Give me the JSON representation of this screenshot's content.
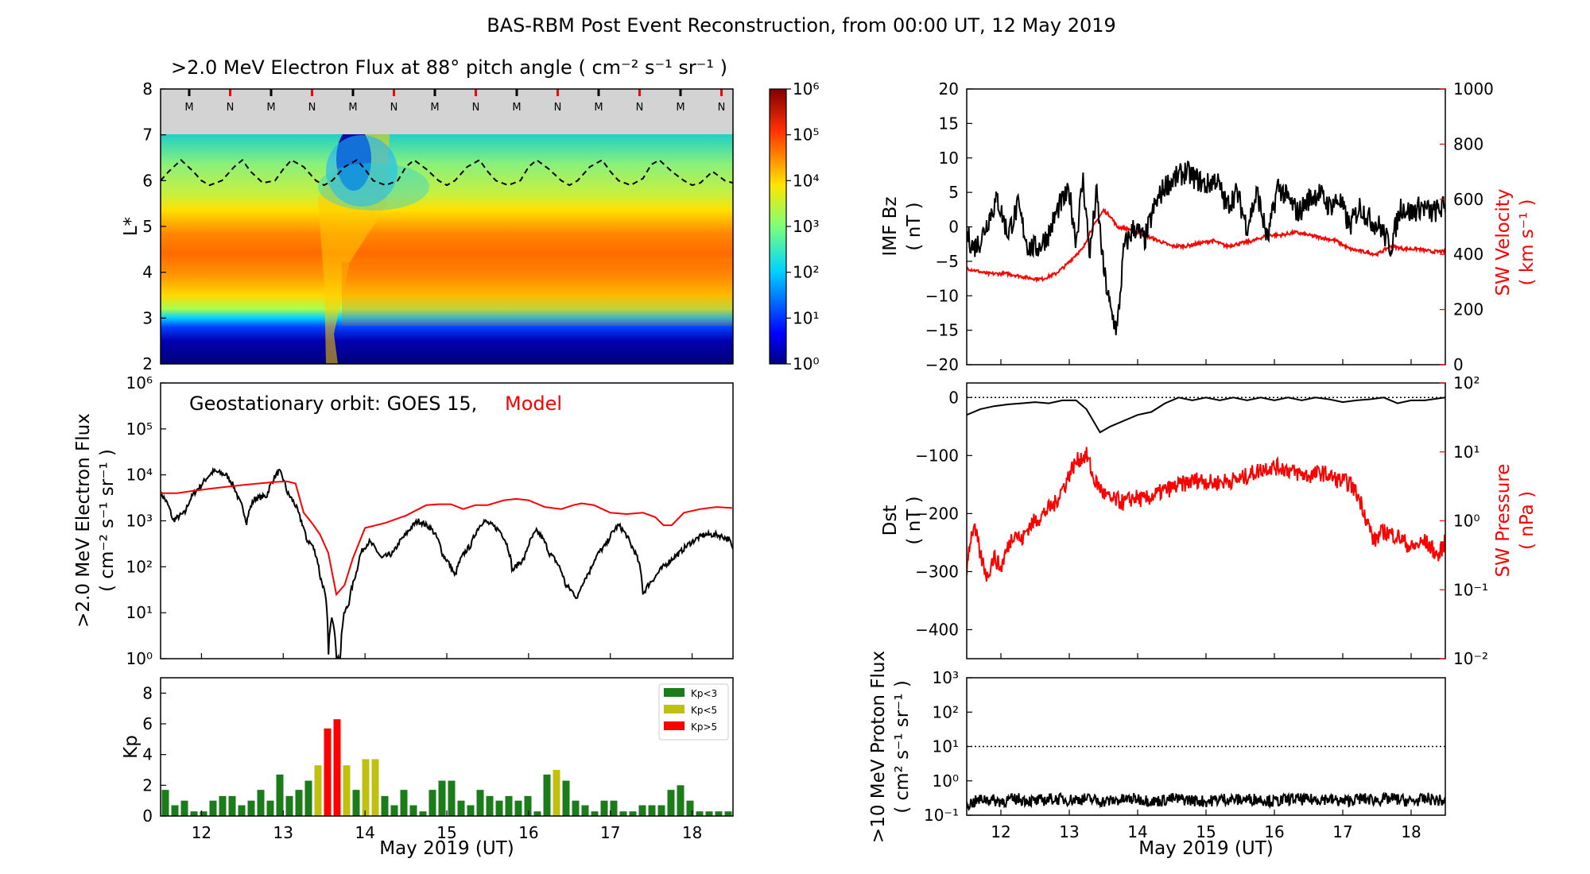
{
  "figure": {
    "title": "BAS-RBM Post Event Reconstruction, from 00:00 UT, 12 May 2019",
    "colors": {
      "model": "#ff0000",
      "obs": "#000000",
      "kp_low": "#1a7d1a",
      "kp_mid": "#c0c010",
      "kp_high": "#ff0000",
      "night_tick": "#ff0000",
      "day_tick": "#000000",
      "band": "#d3d3d3"
    }
  },
  "chart_data": [
    {
      "id": "flux_map",
      "type": "heatmap",
      "title": ">2.0 MeV Electron Flux at 88° pitch angle ( cm⁻² s⁻¹ sr⁻¹ )",
      "ylabel": "L*",
      "ylim": [
        2,
        8
      ],
      "yticks": [
        "2",
        "3",
        "4",
        "5",
        "6",
        "7",
        "8"
      ],
      "colorbar": {
        "scale": "log",
        "range": [
          1,
          1000000
        ],
        "tick_labels": [
          "10⁰",
          "10¹",
          "10²",
          "10³",
          "10⁴",
          "10⁵",
          "10⁶"
        ]
      },
      "mlt_markers": [
        "M",
        "N",
        "M",
        "N",
        "M",
        "N",
        "M",
        "N",
        "M",
        "N",
        "M",
        "N",
        "M",
        "N"
      ],
      "gso_lstar": {
        "t": [
          0,
          0.1,
          0.25,
          0.4,
          0.5,
          0.6,
          0.75,
          0.9,
          1.0,
          1.1,
          1.25,
          1.4,
          1.5,
          1.6,
          1.75,
          1.9,
          2.0,
          2.1,
          2.25,
          2.4,
          2.5,
          2.6,
          2.75,
          2.9,
          3.0,
          3.1,
          3.25,
          3.4,
          3.5,
          3.6,
          3.75,
          3.9,
          4.0,
          4.1,
          4.25,
          4.4,
          4.5,
          4.6,
          4.75,
          4.9,
          5.0,
          5.1,
          5.25,
          5.4,
          5.5,
          5.6,
          5.75,
          5.9,
          6.0,
          6.1,
          6.25,
          6.4,
          6.5,
          6.6,
          6.75,
          6.9,
          7.0
        ],
        "lstar": [
          6.0,
          6.2,
          6.45,
          6.2,
          6.0,
          5.9,
          6.0,
          6.3,
          6.45,
          6.2,
          5.95,
          6.0,
          6.25,
          6.45,
          6.3,
          6.0,
          5.9,
          6.0,
          6.3,
          6.45,
          6.25,
          6.0,
          5.9,
          6.0,
          6.3,
          6.45,
          6.25,
          6.0,
          5.9,
          6.0,
          6.3,
          6.45,
          6.2,
          6.0,
          5.9,
          6.0,
          6.3,
          6.45,
          6.25,
          6.0,
          5.9,
          6.0,
          6.3,
          6.45,
          6.2,
          6.0,
          5.9,
          6.05,
          6.35,
          6.45,
          6.2,
          6.0,
          5.9,
          5.95,
          6.2,
          6.0,
          5.95
        ]
      }
    },
    {
      "id": "goes_flux",
      "type": "line",
      "annotation": "Geostationary orbit:   GOES 15,",
      "annotation_model": "Model",
      "ylabel_line1": ">2.0 MeV Electron Flux",
      "ylabel_line2": "( cm⁻² s⁻¹ sr⁻¹ )",
      "yscale": "log",
      "ylim": [
        1,
        1000000
      ],
      "yticks": [
        "10⁰",
        "10¹",
        "10²",
        "10³",
        "10⁴",
        "10⁵",
        "10⁶"
      ],
      "series": [
        {
          "name": "GOES 15",
          "t": [
            0,
            0.15,
            0.3,
            0.5,
            0.65,
            0.8,
            0.95,
            1.05,
            1.15,
            1.3,
            1.45,
            1.55,
            1.7,
            1.78,
            1.85,
            1.95,
            2.05,
            2.1,
            2.15,
            2.2,
            2.25,
            2.3,
            2.35,
            2.4,
            2.45,
            2.55,
            2.7,
            2.85,
            3.0,
            3.15,
            3.3,
            3.45,
            3.6,
            3.8,
            3.95,
            4.15,
            4.3,
            4.45,
            4.6,
            4.75,
            4.95,
            5.1,
            5.25,
            5.45,
            5.6,
            5.75,
            5.9,
            6.05,
            6.2,
            6.35,
            6.5,
            6.65,
            6.8,
            6.95,
            7.0
          ],
          "values": [
            4000,
            1000,
            1500,
            6000,
            12000,
            10000,
            3000,
            900,
            3000,
            3500,
            12000,
            4000,
            1200,
            400,
            300,
            60,
            1,
            8,
            1,
            1,
            10,
            15,
            40,
            80,
            200,
            350,
            150,
            200,
            500,
            1000,
            700,
            180,
            60,
            300,
            1000,
            600,
            80,
            150,
            600,
            200,
            40,
            20,
            80,
            300,
            800,
            300,
            25,
            60,
            120,
            200,
            350,
            500,
            500,
            400,
            220
          ]
        },
        {
          "name": "Model",
          "t": [
            0,
            0.2,
            0.4,
            0.6,
            0.8,
            1.0,
            1.2,
            1.4,
            1.55,
            1.65,
            1.75,
            1.85,
            1.95,
            2.05,
            2.15,
            2.25,
            2.35,
            2.5,
            2.75,
            3.0,
            3.25,
            3.4,
            3.55,
            3.7,
            3.85,
            4.0,
            4.2,
            4.35,
            4.5,
            4.7,
            4.9,
            5.05,
            5.15,
            5.3,
            5.5,
            5.7,
            5.9,
            6.05,
            6.15,
            6.25,
            6.4,
            6.6,
            6.8,
            7.0
          ],
          "values": [
            4000,
            4000,
            4500,
            5000,
            5500,
            6000,
            6500,
            7000,
            7200,
            6500,
            1500,
            900,
            500,
            200,
            25,
            40,
            150,
            700,
            900,
            1300,
            2200,
            2300,
            2300,
            1800,
            2200,
            2200,
            2800,
            3000,
            2800,
            2000,
            1800,
            2200,
            2400,
            2200,
            1500,
            1400,
            1500,
            1200,
            800,
            800,
            1500,
            1800,
            2000,
            1900
          ]
        }
      ]
    },
    {
      "id": "kp",
      "type": "bar",
      "ylabel": "Kp",
      "ylim": [
        0,
        9
      ],
      "yticks": [
        "0",
        "2",
        "4",
        "6",
        "8"
      ],
      "xlabel": "May 2019 (UT)",
      "xticks": [
        "12",
        "13",
        "14",
        "15",
        "16",
        "17",
        "18"
      ],
      "legend": [
        "Kp<3",
        "Kp<5",
        "Kp>5"
      ],
      "values": [
        1.7,
        0.7,
        1.0,
        0.3,
        0.3,
        1.0,
        1.3,
        1.3,
        0.7,
        1.0,
        1.7,
        1.0,
        2.7,
        1.3,
        1.7,
        2.3,
        3.3,
        5.7,
        6.3,
        3.3,
        1.7,
        3.7,
        3.7,
        1.3,
        0.7,
        1.7,
        0.7,
        0.3,
        1.7,
        2.3,
        2.3,
        1.0,
        0.7,
        1.7,
        1.3,
        1.0,
        1.3,
        1.0,
        1.3,
        0.3,
        2.7,
        3.0,
        2.3,
        1.0,
        0.7,
        0.3,
        1.0,
        1.0,
        0.3,
        0.3,
        0.7,
        0.7,
        0.7,
        1.7,
        2.0,
        1.0,
        0.3,
        0.3,
        0.3,
        0.3
      ]
    },
    {
      "id": "imf_sw",
      "type": "line",
      "ylabel_left_line1": "IMF Bz",
      "ylabel_left_line2": "( nT )",
      "ylabel_right_line1": "SW Velocity",
      "ylabel_right_line2": "( km s⁻¹ )",
      "ylim_left": [
        -20,
        20
      ],
      "yticks_left": [
        "20",
        "15",
        "10",
        "5",
        "0",
        "−5",
        "−10",
        "−15",
        "−20"
      ],
      "ylim_right": [
        0,
        1000
      ],
      "yticks_right": [
        "1000",
        "800",
        "600",
        "400",
        "200",
        "0"
      ],
      "series": [
        {
          "name": "IMF Bz",
          "t": [
            0,
            0.1,
            0.2,
            0.35,
            0.45,
            0.6,
            0.75,
            0.9,
            1.05,
            1.2,
            1.35,
            1.5,
            1.6,
            1.7,
            1.8,
            1.9,
            2.0,
            2.1,
            2.2,
            2.3,
            2.45,
            2.6,
            2.75,
            2.9,
            3.05,
            3.2,
            3.35,
            3.5,
            3.65,
            3.8,
            3.95,
            4.1,
            4.25,
            4.4,
            4.55,
            4.7,
            4.85,
            5.0,
            5.15,
            5.3,
            5.45,
            5.6,
            5.75,
            5.9,
            6.05,
            6.2,
            6.35,
            6.5,
            6.65,
            6.8,
            7.0
          ],
          "values": [
            -1,
            -3,
            -2,
            2,
            4,
            -1,
            3,
            -3,
            -3,
            -1,
            3,
            5,
            -2,
            7,
            -4,
            5,
            -6,
            -12,
            -15,
            -3,
            0,
            -2,
            3,
            6,
            7,
            8,
            7,
            6,
            7,
            3,
            5,
            0,
            5,
            -2,
            6,
            4,
            2,
            4,
            5,
            3,
            4,
            0,
            3,
            1,
            0,
            -3,
            3,
            2,
            3,
            2,
            3
          ]
        },
        {
          "name": "SW Velocity",
          "t": [
            0,
            0.3,
            0.6,
            0.9,
            1.1,
            1.3,
            1.45,
            1.6,
            1.7,
            1.8,
            1.9,
            2.0,
            2.1,
            2.2,
            2.4,
            2.6,
            2.8,
            3.0,
            3.2,
            3.4,
            3.6,
            3.8,
            4.0,
            4.2,
            4.4,
            4.6,
            4.8,
            5.0,
            5.2,
            5.4,
            5.6,
            5.8,
            6.0,
            6.2,
            6.4,
            6.6,
            6.8,
            7.0
          ],
          "values": [
            350,
            330,
            330,
            315,
            310,
            330,
            360,
            400,
            420,
            480,
            520,
            560,
            540,
            500,
            490,
            470,
            450,
            430,
            430,
            440,
            450,
            430,
            440,
            450,
            470,
            470,
            480,
            470,
            460,
            450,
            420,
            410,
            400,
            430,
            420,
            420,
            410,
            410
          ]
        }
      ]
    },
    {
      "id": "dst_pressure",
      "type": "line",
      "ylabel_left_line1": "Dst",
      "ylabel_left_line2": "( nT )",
      "ylabel_right_line1": "SW Pressure",
      "ylabel_right_line2": "( nPa )",
      "ylim_left": [
        -450,
        25
      ],
      "yticks_left": [
        "0",
        "−100",
        "−200",
        "−300",
        "−400"
      ],
      "ylim_right": [
        0.01,
        100
      ],
      "yticks_right": [
        "10²",
        "10¹",
        "10⁰",
        "10⁻¹",
        "10⁻²"
      ],
      "series": [
        {
          "name": "Dst",
          "t": [
            0,
            0.2,
            0.4,
            0.6,
            0.8,
            1.0,
            1.2,
            1.4,
            1.6,
            1.75,
            1.85,
            1.95,
            2.1,
            2.3,
            2.5,
            2.7,
            2.9,
            3.1,
            3.3,
            3.5,
            3.7,
            3.9,
            4.1,
            4.3,
            4.5,
            4.7,
            4.9,
            5.1,
            5.3,
            5.5,
            5.7,
            5.9,
            6.1,
            6.3,
            6.5,
            6.7,
            7.0
          ],
          "values": [
            -30,
            -20,
            -15,
            -12,
            -10,
            -8,
            -10,
            -5,
            -5,
            -20,
            -40,
            -60,
            -50,
            -40,
            -30,
            -25,
            -10,
            0,
            -5,
            0,
            -5,
            0,
            -5,
            0,
            -5,
            0,
            -5,
            0,
            -3,
            -8,
            -5,
            -3,
            0,
            -10,
            -5,
            -5,
            0
          ]
        },
        {
          "name": "SW Pressure",
          "t": [
            0,
            0.1,
            0.2,
            0.3,
            0.4,
            0.5,
            0.6,
            0.7,
            0.8,
            0.9,
            1.0,
            1.1,
            1.2,
            1.3,
            1.45,
            1.55,
            1.65,
            1.75,
            1.85,
            1.95,
            2.0,
            2.1,
            2.2,
            2.3,
            2.45,
            2.6,
            2.8,
            3.0,
            3.2,
            3.4,
            3.6,
            3.8,
            4.0,
            4.2,
            4.4,
            4.6,
            4.8,
            5.0,
            5.2,
            5.4,
            5.6,
            5.75,
            5.85,
            5.95,
            6.1,
            6.3,
            6.5,
            6.7,
            6.9,
            7.0
          ],
          "values": [
            0.2,
            0.8,
            0.3,
            0.15,
            0.3,
            0.2,
            0.4,
            0.7,
            0.5,
            0.8,
            1.0,
            1.2,
            1.5,
            1.8,
            3.5,
            6,
            8,
            9,
            4,
            3,
            2.5,
            2,
            2.0,
            1.8,
            2.2,
            2.0,
            2.5,
            3.0,
            3.5,
            4.0,
            3.5,
            3.8,
            4.0,
            5.0,
            6.0,
            6.0,
            5.0,
            4.5,
            5.0,
            4.0,
            3.5,
            2.0,
            1.0,
            0.5,
            0.7,
            0.6,
            0.4,
            0.5,
            0.3,
            0.5
          ]
        }
      ]
    },
    {
      "id": "proton",
      "type": "line",
      "ylabel_line1": ">10 MeV Proton Flux",
      "ylabel_line2": "( cm² s⁻¹ sr⁻¹ )",
      "yscale": "log",
      "ylim": [
        0.1,
        1000
      ],
      "yticks": [
        "10³",
        "10²",
        "10¹",
        "10⁰",
        "10⁻¹"
      ],
      "xlabel": "May 2019 (UT)",
      "xticks": [
        "12",
        "13",
        "14",
        "15",
        "16",
        "17",
        "18"
      ],
      "threshold": 10,
      "series": [
        {
          "name": "Proton Flux",
          "t": [
            0,
            0.25,
            0.5,
            0.75,
            1.0,
            1.25,
            1.5,
            1.75,
            2.0,
            2.25,
            2.5,
            2.75,
            3.0,
            3.25,
            3.5,
            3.75,
            4.0,
            4.25,
            4.5,
            4.75,
            5.0,
            5.25,
            5.5,
            5.75,
            6.0,
            6.25,
            6.5,
            6.75,
            7.0
          ],
          "values": [
            0.2,
            0.3,
            0.25,
            0.3,
            0.25,
            0.3,
            0.28,
            0.3,
            0.25,
            0.28,
            0.3,
            0.25,
            0.3,
            0.28,
            0.25,
            0.3,
            0.28,
            0.3,
            0.25,
            0.3,
            0.28,
            0.3,
            0.25,
            0.3,
            0.28,
            0.3,
            0.25,
            0.3,
            0.25
          ]
        }
      ]
    }
  ]
}
